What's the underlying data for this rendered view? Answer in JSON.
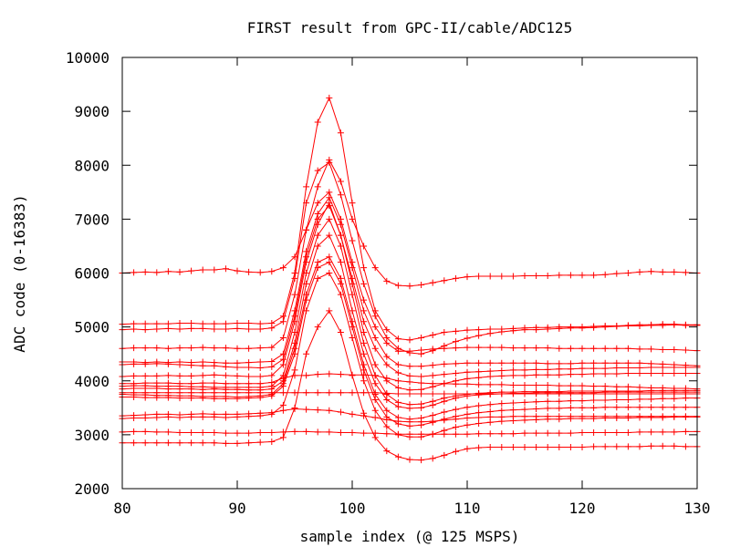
{
  "chart_data": {
    "type": "line",
    "title": "FIRST result from GPC-II/cable/ADC125",
    "xlabel": "sample index (@ 125 MSPS)",
    "ylabel": "ADC code (0-16383)",
    "xlim": [
      80,
      130
    ],
    "ylim": [
      2000,
      10000
    ],
    "xticks": [
      80,
      90,
      100,
      110,
      120,
      130
    ],
    "yticks": [
      2000,
      3000,
      4000,
      5000,
      6000,
      7000,
      8000,
      9000,
      10000
    ],
    "grid": false,
    "color": "#ff0000",
    "x": [
      80,
      81,
      82,
      83,
      84,
      85,
      86,
      87,
      88,
      89,
      90,
      91,
      92,
      93,
      94,
      95,
      96,
      97,
      98,
      99,
      100,
      101,
      102,
      103,
      104,
      105,
      106,
      107,
      108,
      109,
      110,
      111,
      112,
      113,
      114,
      115,
      116,
      117,
      118,
      119,
      120,
      121,
      122,
      123,
      124,
      125,
      126,
      127,
      128,
      129,
      130
    ],
    "series": [
      {
        "values": [
          6000,
          6010,
          6020,
          6010,
          6030,
          6020,
          6040,
          6060,
          6060,
          6080,
          6040,
          6020,
          6010,
          6030,
          6100,
          6300,
          6800,
          7600,
          8100,
          7700,
          7000,
          6500,
          6100,
          5850,
          5770,
          5760,
          5780,
          5820,
          5860,
          5900,
          5930,
          5940,
          5940,
          5940,
          5940,
          5950,
          5950,
          5950,
          5960,
          5960,
          5960,
          5960,
          5970,
          5990,
          6000,
          6020,
          6030,
          6020,
          6020,
          6010,
          6000
        ]
      },
      {
        "values": [
          5050,
          5060,
          5060,
          5060,
          5060,
          5070,
          5070,
          5060,
          5060,
          5060,
          5070,
          5070,
          5060,
          5070,
          5200,
          6000,
          7600,
          8800,
          9250,
          8600,
          7300,
          6100,
          5300,
          4950,
          4780,
          4760,
          4800,
          4850,
          4900,
          4920,
          4940,
          4950,
          4960,
          4960,
          4970,
          4980,
          4990,
          4990,
          5000,
          5000,
          5000,
          5010,
          5020,
          5020,
          5030,
          5040,
          5040,
          5050,
          5050,
          5040,
          5040
        ]
      },
      {
        "values": [
          4950,
          4960,
          4950,
          4960,
          4970,
          4960,
          4970,
          4970,
          4960,
          4960,
          4970,
          4960,
          4960,
          4980,
          5100,
          5900,
          7300,
          7900,
          8050,
          7450,
          6600,
          5800,
          5200,
          4800,
          4600,
          4520,
          4500,
          4560,
          4650,
          4730,
          4790,
          4840,
          4880,
          4910,
          4930,
          4950,
          4950,
          4960,
          4970,
          4980,
          4980,
          4990,
          5000,
          5010,
          5020,
          5020,
          5030,
          5030,
          5040,
          5030,
          5030
        ]
      },
      {
        "values": [
          4600,
          4610,
          4610,
          4610,
          4600,
          4610,
          4610,
          4620,
          4610,
          4610,
          4600,
          4600,
          4610,
          4620,
          4800,
          5600,
          6800,
          7300,
          7500,
          7000,
          6200,
          5500,
          5000,
          4700,
          4550,
          4550,
          4570,
          4590,
          4600,
          4610,
          4620,
          4620,
          4620,
          4620,
          4610,
          4610,
          4610,
          4610,
          4600,
          4600,
          4600,
          4600,
          4600,
          4600,
          4600,
          4590,
          4590,
          4580,
          4580,
          4570,
          4560
        ]
      },
      {
        "values": [
          4350,
          4350,
          4340,
          4350,
          4340,
          4350,
          4340,
          4350,
          4340,
          4330,
          4330,
          4340,
          4350,
          4360,
          4500,
          5300,
          6400,
          7100,
          7400,
          6900,
          6100,
          5300,
          4800,
          4450,
          4300,
          4270,
          4270,
          4290,
          4310,
          4320,
          4330,
          4330,
          4330,
          4330,
          4330,
          4330,
          4330,
          4320,
          4320,
          4320,
          4330,
          4330,
          4330,
          4330,
          4330,
          4330,
          4320,
          4310,
          4300,
          4290,
          4280
        ]
      },
      {
        "values": [
          4300,
          4310,
          4310,
          4320,
          4310,
          4300,
          4290,
          4280,
          4280,
          4260,
          4250,
          4250,
          4240,
          4260,
          4400,
          5200,
          6300,
          7000,
          7250,
          6700,
          5900,
          5100,
          4600,
          4300,
          4150,
          4090,
          4080,
          4100,
          4120,
          4140,
          4160,
          4170,
          4180,
          4190,
          4200,
          4200,
          4210,
          4210,
          4220,
          4220,
          4230,
          4230,
          4230,
          4240,
          4240,
          4240,
          4250,
          4250,
          4250,
          4250,
          4250
        ]
      },
      {
        "values": [
          4080,
          4090,
          4090,
          4090,
          4100,
          4090,
          4090,
          4100,
          4110,
          4100,
          4090,
          4080,
          4080,
          4100,
          4300,
          5100,
          6200,
          6900,
          7300,
          6700,
          5800,
          4900,
          4300,
          4000,
          3870,
          3830,
          3840,
          3890,
          3950,
          4000,
          4040,
          4060,
          4080,
          4090,
          4100,
          4100,
          4110,
          4110,
          4110,
          4120,
          4120,
          4130,
          4130,
          4130,
          4140,
          4140,
          4140,
          4140,
          4140,
          4140,
          4140
        ]
      },
      {
        "values": [
          3950,
          3950,
          3960,
          3960,
          3960,
          3950,
          3950,
          3960,
          3960,
          3950,
          3950,
          3950,
          3950,
          3970,
          4050,
          4100,
          4100,
          4120,
          4130,
          4120,
          4110,
          4110,
          4100,
          4050,
          4000,
          3980,
          3960,
          3950,
          3950,
          3940,
          3940,
          3930,
          3930,
          3930,
          3920,
          3920,
          3920,
          3920,
          3910,
          3910,
          3910,
          3900,
          3900,
          3890,
          3890,
          3880,
          3870,
          3870,
          3860,
          3860,
          3850
        ]
      },
      {
        "values": [
          3900,
          3910,
          3910,
          3900,
          3900,
          3900,
          3890,
          3890,
          3880,
          3880,
          3880,
          3880,
          3880,
          3900,
          4100,
          4900,
          6000,
          6700,
          7000,
          6500,
          5600,
          4700,
          4100,
          3750,
          3600,
          3560,
          3570,
          3620,
          3680,
          3720,
          3750,
          3770,
          3780,
          3790,
          3790,
          3800,
          3800,
          3800,
          3800,
          3810,
          3810,
          3810,
          3810,
          3810,
          3810,
          3810,
          3820,
          3820,
          3820,
          3820,
          3820
        ]
      },
      {
        "values": [
          3850,
          3860,
          3860,
          3860,
          3850,
          3850,
          3850,
          3840,
          3850,
          3840,
          3840,
          3830,
          3830,
          3850,
          4000,
          4700,
          5800,
          6500,
          6700,
          6200,
          5300,
          4500,
          3950,
          3650,
          3520,
          3490,
          3500,
          3550,
          3620,
          3680,
          3720,
          3740,
          3750,
          3760,
          3770,
          3770,
          3780,
          3780,
          3780,
          3780,
          3780,
          3780,
          3790,
          3790,
          3790,
          3790,
          3790,
          3790,
          3790,
          3790,
          3790
        ]
      },
      {
        "values": [
          3780,
          3780,
          3780,
          3780,
          3780,
          3780,
          3780,
          3780,
          3780,
          3780,
          3780,
          3780,
          3780,
          3780,
          3780,
          3780,
          3780,
          3780,
          3780,
          3780,
          3780,
          3780,
          3780,
          3770,
          3760,
          3760,
          3760,
          3760,
          3760,
          3760,
          3760,
          3760,
          3760,
          3760,
          3760,
          3760,
          3760,
          3760,
          3760,
          3760,
          3760,
          3760,
          3760,
          3760,
          3760,
          3760,
          3760,
          3760,
          3760,
          3760,
          3760
        ]
      },
      {
        "values": [
          3750,
          3740,
          3740,
          3730,
          3730,
          3720,
          3720,
          3710,
          3710,
          3710,
          3700,
          3710,
          3720,
          3750,
          3950,
          4600,
          5600,
          6200,
          6300,
          5900,
          5100,
          4300,
          3750,
          3450,
          3320,
          3290,
          3310,
          3360,
          3420,
          3470,
          3510,
          3540,
          3560,
          3580,
          3590,
          3600,
          3610,
          3620,
          3620,
          3630,
          3630,
          3640,
          3640,
          3650,
          3650,
          3660,
          3660,
          3670,
          3670,
          3680,
          3680
        ]
      },
      {
        "values": [
          3700,
          3700,
          3690,
          3690,
          3690,
          3680,
          3680,
          3680,
          3670,
          3670,
          3670,
          3680,
          3690,
          3720,
          3900,
          4500,
          5500,
          6100,
          6200,
          5800,
          5000,
          4200,
          3650,
          3330,
          3200,
          3160,
          3180,
          3230,
          3290,
          3340,
          3380,
          3410,
          3430,
          3450,
          3460,
          3470,
          3480,
          3490,
          3490,
          3500,
          3500,
          3500,
          3510,
          3510,
          3510,
          3510,
          3510,
          3510,
          3510,
          3510,
          3510
        ]
      },
      {
        "values": [
          3350,
          3360,
          3370,
          3380,
          3380,
          3370,
          3380,
          3390,
          3380,
          3380,
          3380,
          3390,
          3400,
          3410,
          3450,
          3480,
          3470,
          3460,
          3450,
          3420,
          3380,
          3350,
          3320,
          3280,
          3250,
          3240,
          3240,
          3250,
          3270,
          3290,
          3310,
          3320,
          3330,
          3330,
          3340,
          3340,
          3340,
          3340,
          3340,
          3340,
          3340,
          3340,
          3340,
          3340,
          3340,
          3340,
          3340,
          3340,
          3340,
          3340,
          3340
        ]
      },
      {
        "values": [
          3300,
          3310,
          3310,
          3320,
          3330,
          3320,
          3330,
          3330,
          3330,
          3320,
          3330,
          3340,
          3350,
          3380,
          3550,
          4200,
          5300,
          5900,
          6000,
          5600,
          4800,
          4000,
          3450,
          3150,
          3000,
          2960,
          2960,
          3010,
          3080,
          3140,
          3180,
          3210,
          3230,
          3250,
          3260,
          3270,
          3280,
          3290,
          3290,
          3300,
          3300,
          3300,
          3310,
          3310,
          3310,
          3320,
          3320,
          3320,
          3330,
          3330,
          3330
        ]
      },
      {
        "values": [
          3050,
          3060,
          3060,
          3050,
          3050,
          3040,
          3040,
          3040,
          3040,
          3030,
          3030,
          3030,
          3040,
          3040,
          3050,
          3060,
          3060,
          3050,
          3050,
          3040,
          3040,
          3030,
          3030,
          3020,
          3010,
          3010,
          3010,
          3010,
          3010,
          3010,
          3010,
          3020,
          3020,
          3020,
          3020,
          3030,
          3030,
          3030,
          3030,
          3030,
          3040,
          3040,
          3040,
          3040,
          3040,
          3050,
          3050,
          3050,
          3050,
          3060,
          3060
        ]
      },
      {
        "values": [
          2850,
          2850,
          2850,
          2850,
          2850,
          2850,
          2850,
          2850,
          2850,
          2840,
          2840,
          2850,
          2860,
          2870,
          2950,
          3500,
          4500,
          5000,
          5300,
          4900,
          4100,
          3400,
          2950,
          2700,
          2590,
          2540,
          2530,
          2560,
          2620,
          2690,
          2740,
          2760,
          2770,
          2770,
          2770,
          2770,
          2770,
          2770,
          2770,
          2770,
          2770,
          2780,
          2780,
          2780,
          2780,
          2780,
          2790,
          2790,
          2790,
          2780,
          2780
        ]
      }
    ]
  }
}
